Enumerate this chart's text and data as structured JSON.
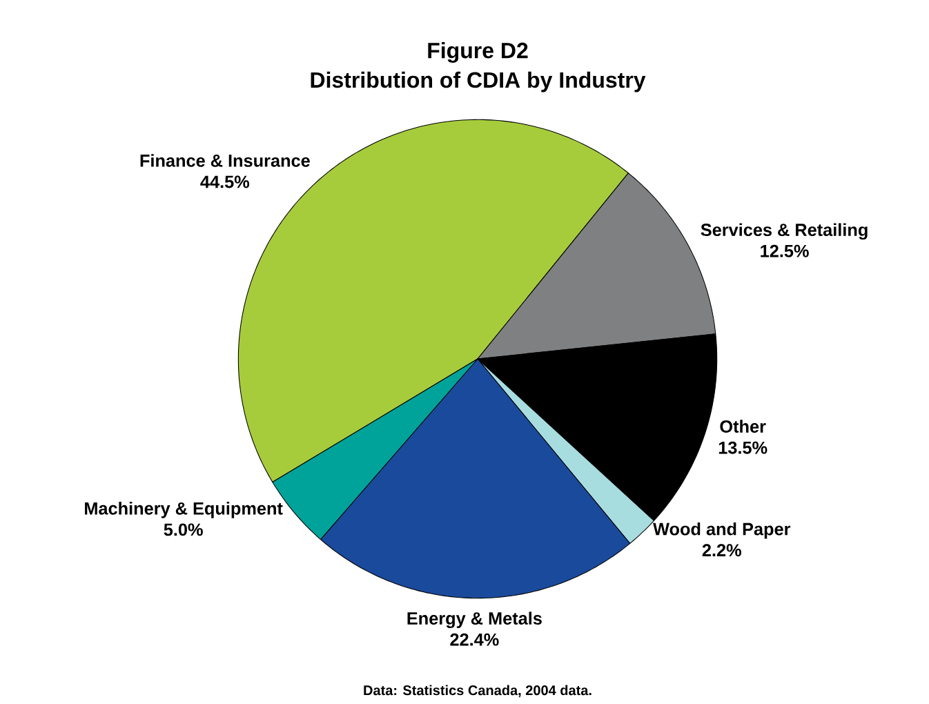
{
  "chart_data": {
    "type": "pie",
    "title": "Figure D2",
    "subtitle": "Distribution of CDIA by Industry",
    "categories": [
      "Finance & Insurance",
      "Services & Retailing",
      "Other",
      "Wood and Paper",
      "Energy & Metals",
      "Machinery & Equipment"
    ],
    "values": [
      44.5,
      12.5,
      13.5,
      2.2,
      22.4,
      5.0
    ],
    "colors": [
      "#a6cc3c",
      "#7f8082",
      "#000000",
      "#a8dde0",
      "#1a4a9c",
      "#00a39a"
    ],
    "value_labels": [
      "44.5%",
      "12.5%",
      "13.5%",
      "2.2%",
      "22.4%",
      "5.0%"
    ],
    "annotations": [
      "Data: Statistics Canada, 2004 data."
    ]
  }
}
